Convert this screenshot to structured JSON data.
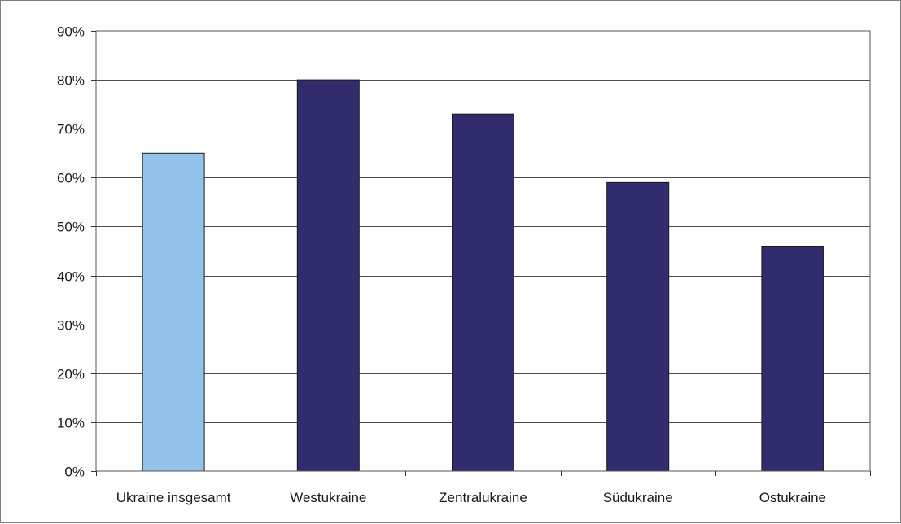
{
  "chart_data": {
    "type": "bar",
    "categories": [
      "Ukraine insgesamt",
      "Westukraine",
      "Zentralukraine",
      "Südukraine",
      "Ostukraine"
    ],
    "values": [
      65,
      80,
      73,
      59,
      46
    ],
    "colors": [
      "#92c1e9",
      "#312c6e",
      "#312c6e",
      "#312c6e",
      "#312c6e"
    ],
    "ylim": [
      0,
      90
    ],
    "yticks": [
      "0%",
      "10%",
      "20%",
      "30%",
      "40%",
      "50%",
      "60%",
      "70%",
      "80%",
      "90%"
    ],
    "grid": true,
    "legend": "none",
    "title": "",
    "xlabel": "",
    "ylabel": ""
  }
}
